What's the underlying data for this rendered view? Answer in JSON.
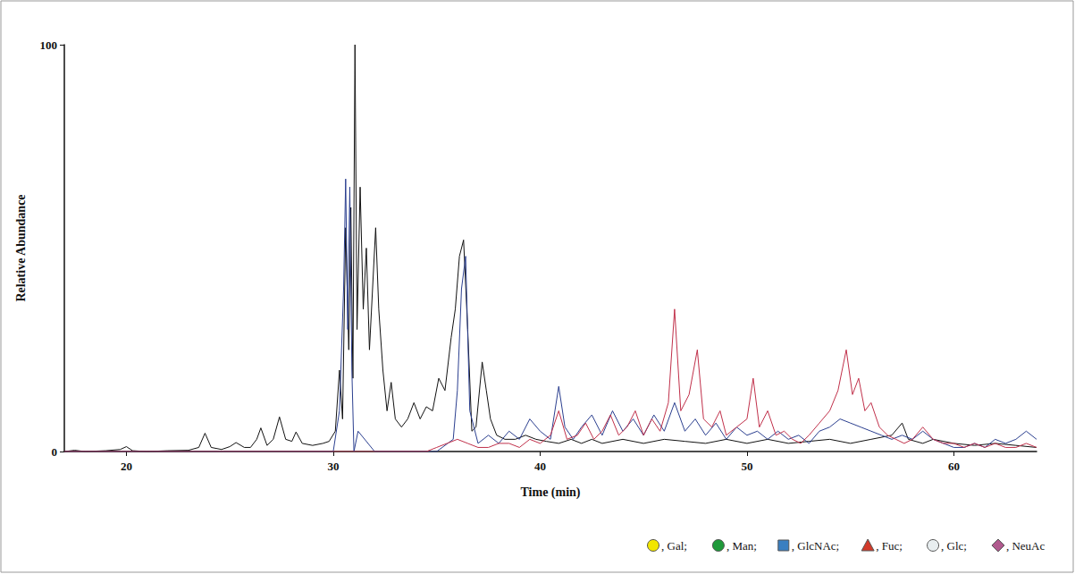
{
  "chart_data": {
    "type": "line",
    "xlabel": "Time (min)",
    "ylabel": "Relative Abundance",
    "xlim": [
      17,
      64
    ],
    "xticks": [
      20,
      30,
      40,
      50,
      60
    ],
    "ylim": [
      0,
      100
    ],
    "yticks": [
      0,
      100
    ],
    "grid": false,
    "series": [
      {
        "color": "#111111",
        "x": [
          17,
          17.5,
          18,
          19,
          19.7,
          20,
          20.3,
          21,
          22,
          23,
          23.5,
          23.8,
          24.1,
          24.6,
          25,
          25.3,
          25.7,
          26,
          26.3,
          26.5,
          26.8,
          27.1,
          27.4,
          27.7,
          28,
          28.2,
          28.5,
          29,
          29.5,
          29.8,
          30.1,
          30.3,
          30.45,
          30.6,
          30.75,
          30.85,
          30.95,
          31.05,
          31.15,
          31.3,
          31.45,
          31.6,
          31.75,
          31.9,
          32.05,
          32.2,
          32.4,
          32.6,
          32.8,
          33,
          33.3,
          33.6,
          33.9,
          34.2,
          34.5,
          34.8,
          35.1,
          35.4,
          35.7,
          35.9,
          36.1,
          36.3,
          36.5,
          36.7,
          36.9,
          37.2,
          37.4,
          37.6,
          37.9,
          38.3,
          38.8,
          39.3,
          39.8,
          40.3,
          40.9,
          41.5,
          42,
          42.5,
          43,
          44,
          45,
          46,
          47,
          48,
          49,
          50,
          51,
          52,
          53,
          54,
          55,
          56,
          57,
          57.5,
          57.8,
          58.5,
          59,
          60,
          61,
          62,
          63,
          64
        ],
        "values": [
          0,
          0.3,
          0,
          0.2,
          0.5,
          1.2,
          0.2,
          0,
          0.2,
          0.3,
          1,
          4.5,
          1,
          0.5,
          1.2,
          2.2,
          1,
          1,
          3,
          5.8,
          1.5,
          3,
          8.5,
          3,
          2.5,
          4.8,
          2,
          1.5,
          2,
          2.5,
          5,
          20,
          8,
          55,
          25,
          60,
          18,
          100,
          30,
          65,
          35,
          50,
          25,
          40,
          55,
          35,
          20,
          10,
          17,
          8,
          6,
          8,
          12,
          8,
          11,
          10,
          18,
          15,
          28,
          35,
          48,
          52,
          30,
          5,
          6,
          22,
          15,
          8,
          4,
          3,
          3,
          4,
          3,
          2.5,
          2,
          3,
          2,
          3,
          2,
          3,
          2,
          3,
          2.5,
          2,
          3,
          2,
          3,
          2,
          2.5,
          3,
          2,
          3,
          4,
          7,
          3,
          2,
          3,
          2,
          1.5,
          2,
          1.5,
          1
        ]
      },
      {
        "color": "#2b3f8f",
        "x": [
          17,
          29.8,
          30,
          30.3,
          30.5,
          30.6,
          30.7,
          30.8,
          30.9,
          31,
          31.2,
          32,
          35,
          35.8,
          36,
          36.2,
          36.4,
          36.6,
          37,
          37.5,
          38,
          38.5,
          39,
          39.5,
          40,
          40.5,
          40.9,
          41.2,
          41.6,
          42,
          42.5,
          43,
          43.5,
          44,
          44.5,
          45,
          45.5,
          46,
          46.5,
          47,
          47.5,
          48,
          48.5,
          49,
          49.5,
          50,
          50.5,
          51,
          51.5,
          52,
          52.5,
          53,
          53.5,
          54,
          54.5,
          55,
          55.5,
          56,
          56.5,
          57,
          57.5,
          58,
          58.5,
          59,
          59.5,
          60,
          60.5,
          61,
          61.5,
          62,
          62.5,
          63,
          63.5,
          64
        ],
        "values": [
          0,
          0,
          0,
          10,
          40,
          67,
          30,
          65,
          20,
          0,
          5,
          0,
          0,
          3,
          15,
          40,
          48,
          10,
          2,
          4,
          2,
          5,
          3,
          8,
          5,
          3,
          16,
          6,
          3,
          6,
          9,
          4,
          10,
          5,
          8,
          4,
          9,
          5,
          12,
          5,
          8,
          4,
          7,
          3,
          6,
          4,
          5,
          3,
          5,
          3,
          4,
          2,
          5,
          6,
          8,
          7,
          6,
          5,
          4,
          3,
          4,
          3,
          5,
          3,
          2,
          1,
          1,
          2,
          1,
          3,
          2,
          3,
          5,
          3
        ]
      },
      {
        "color": "#c0304a",
        "x": [
          17,
          34.5,
          35,
          35.5,
          36,
          36.5,
          37,
          37.5,
          38,
          38.5,
          39,
          39.5,
          40,
          40.5,
          40.9,
          41.3,
          41.8,
          42.2,
          42.6,
          43,
          43.4,
          43.8,
          44.2,
          44.6,
          45,
          45.4,
          45.8,
          46.2,
          46.5,
          46.8,
          47.2,
          47.6,
          47.9,
          48.3,
          48.7,
          49,
          49.5,
          50,
          50.3,
          50.6,
          51,
          51.4,
          51.8,
          52.2,
          52.6,
          53,
          53.5,
          54,
          54.4,
          54.8,
          55.1,
          55.4,
          55.7,
          56,
          56.4,
          56.8,
          57.2,
          57.6,
          58,
          58.5,
          59,
          59.5,
          60,
          60.5,
          61,
          61.5,
          62,
          62.5,
          63,
          63.5,
          64
        ],
        "values": [
          0,
          0,
          1,
          2,
          3,
          2,
          1,
          1,
          2,
          2,
          1,
          3,
          2,
          4,
          10,
          3,
          4,
          7,
          3,
          5,
          9,
          4,
          6,
          10,
          4,
          8,
          5,
          12,
          35,
          10,
          14,
          25,
          8,
          6,
          10,
          4,
          6,
          8,
          18,
          6,
          10,
          4,
          5,
          3,
          2,
          4,
          7,
          10,
          15,
          25,
          14,
          18,
          10,
          12,
          6,
          4,
          3,
          2,
          3,
          6,
          3,
          2,
          2,
          1,
          2,
          1,
          2,
          1,
          1,
          2,
          1
        ]
      }
    ],
    "key": [
      {
        "text": ", Gal;",
        "color": "#f2e600",
        "marker": "circle"
      },
      {
        "text": ", Man;",
        "color": "#1f9a3a",
        "marker": "circle"
      },
      {
        "text": ", GlcNAc;",
        "color": "#3a7fc1",
        "marker": "square"
      },
      {
        "text": ", Fuc;",
        "color": "#d23a2a",
        "marker": "triangle"
      },
      {
        "text": ", Glc;",
        "color": "#e8eef0",
        "marker": "circle"
      },
      {
        "text": ", NeuAc",
        "color": "#b05a8e",
        "marker": "diamond"
      }
    ]
  }
}
